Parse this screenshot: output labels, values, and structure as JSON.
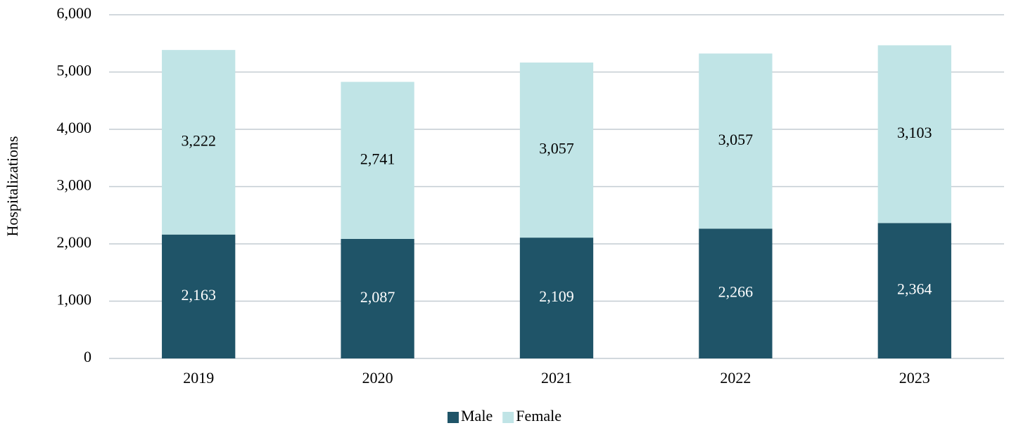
{
  "chart_data": {
    "type": "stacked_bar",
    "y_label": "Hospitalizations",
    "categories": [
      "2019",
      "2020",
      "2021",
      "2022",
      "2023"
    ],
    "series": [
      {
        "name": "Male",
        "color": "#1f5468",
        "values": [
          2163,
          2087,
          2109,
          2266,
          2364
        ],
        "value_labels": [
          "2,163",
          "2,087",
          "2,109",
          "2,266",
          "2,364"
        ]
      },
      {
        "name": "Female",
        "color": "#c0e4e6",
        "values": [
          3222,
          2741,
          3057,
          3057,
          3103
        ],
        "value_labels": [
          "3,222",
          "2,741",
          "3,057",
          "3,057",
          "3,103"
        ]
      }
    ],
    "ylim": [
      0,
      6000
    ],
    "yticks": [
      0,
      {
        "value": 1000,
        "label": "1,000"
      },
      {
        "value": 2000,
        "label": "2,000"
      },
      {
        "value": 3000,
        "label": "3,000"
      },
      {
        "value": 4000,
        "label": "4,000"
      },
      {
        "value": 5000,
        "label": "5,000"
      },
      {
        "value": 6000,
        "label": "6,000"
      }
    ],
    "grid": true,
    "legend": "bottom"
  }
}
